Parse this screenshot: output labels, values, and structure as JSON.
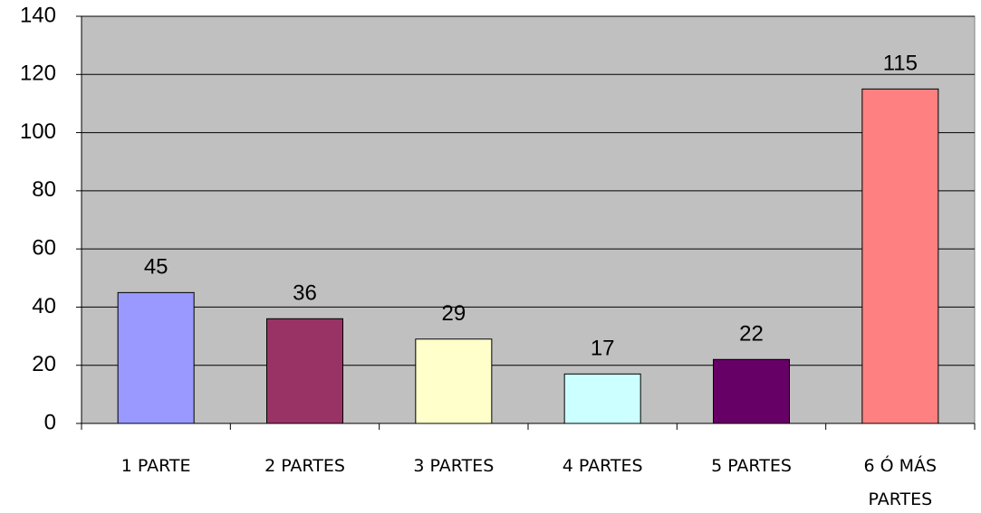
{
  "chart_data": {
    "type": "bar",
    "categories": [
      "1 PARTE",
      "2 PARTES",
      "3 PARTES",
      "4 PARTES",
      "5 PARTES",
      "6 Ó MÁS PARTES"
    ],
    "values": [
      45,
      36,
      29,
      17,
      22,
      115
    ],
    "colors": [
      "#9999ff",
      "#993366",
      "#ffffcc",
      "#ccffff",
      "#660066",
      "#ff8080"
    ],
    "ylim": [
      0,
      140
    ],
    "yticks": [
      0,
      20,
      40,
      60,
      80,
      100,
      120,
      140
    ],
    "grid": true
  }
}
